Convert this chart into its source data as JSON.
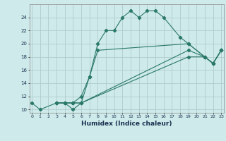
{
  "xlabel": "Humidex (Indice chaleur)",
  "background_color": "#ceeaea",
  "line_color": "#2a7868",
  "grid_color": "#b0cccc",
  "s1x": [
    0,
    1,
    3,
    4,
    5,
    6,
    7,
    8,
    9,
    10,
    11,
    12,
    13,
    14,
    15,
    16,
    18,
    19,
    21,
    22,
    23
  ],
  "s1y": [
    11,
    10,
    11,
    11,
    11,
    11,
    15,
    20,
    22,
    22,
    24,
    25,
    24,
    25,
    25,
    24,
    21,
    20,
    18,
    17,
    19
  ],
  "s2x": [
    3,
    4,
    5,
    6,
    7,
    8,
    19,
    21,
    22,
    23
  ],
  "s2y": [
    11,
    11,
    11,
    12,
    15,
    19,
    20,
    18,
    17,
    19
  ],
  "s3x": [
    3,
    4,
    5,
    6,
    19,
    21,
    22,
    23
  ],
  "s3y": [
    11,
    11,
    11,
    11,
    19,
    18,
    17,
    19
  ],
  "s4x": [
    3,
    4,
    5,
    6,
    19,
    21,
    22,
    23
  ],
  "s4y": [
    11,
    11,
    10,
    11,
    18,
    18,
    17,
    19
  ],
  "xlim": [
    -0.3,
    23.3
  ],
  "ylim": [
    9.5,
    26
  ],
  "yticks": [
    10,
    12,
    14,
    16,
    18,
    20,
    22,
    24
  ],
  "xticks": [
    0,
    1,
    2,
    3,
    4,
    5,
    6,
    7,
    8,
    9,
    10,
    11,
    12,
    13,
    14,
    15,
    16,
    17,
    18,
    19,
    20,
    21,
    22,
    23
  ]
}
